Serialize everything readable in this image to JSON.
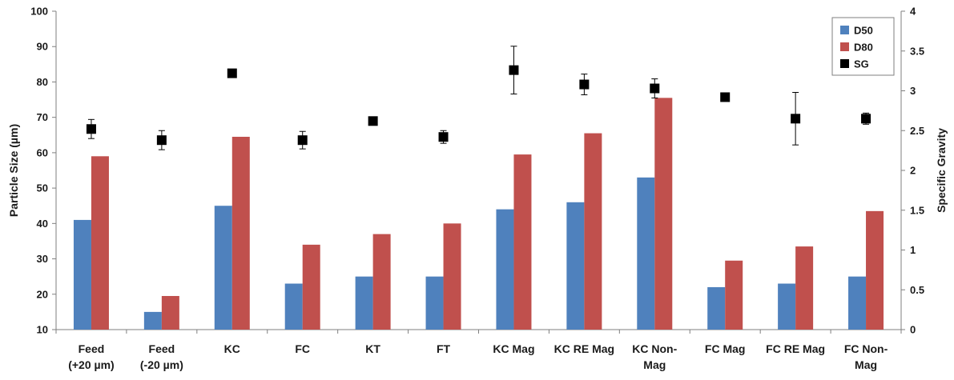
{
  "chart_data": {
    "type": "bar",
    "title": "",
    "categories": [
      [
        "Feed",
        "(+20 µm)"
      ],
      [
        "Feed",
        "(-20 µm)"
      ],
      [
        "KC"
      ],
      [
        "FC"
      ],
      [
        "KT"
      ],
      [
        "FT"
      ],
      [
        "KC Mag"
      ],
      [
        "KC RE Mag"
      ],
      [
        "KC Non-",
        "Mag"
      ],
      [
        "FC Mag"
      ],
      [
        "FC RE Mag"
      ],
      [
        "FC Non-",
        "Mag"
      ]
    ],
    "ylabel": "Particle Size (µm)",
    "y2label": "Specific Gravity",
    "ylim": [
      10,
      100
    ],
    "yticks": [
      10,
      20,
      30,
      40,
      50,
      60,
      70,
      80,
      90,
      100
    ],
    "y2lim": [
      0,
      4
    ],
    "y2ticks": [
      "0",
      "0.5",
      "1",
      "1.5",
      "2",
      "2.5",
      "3",
      "3.5",
      "4"
    ],
    "series": [
      {
        "name": "D50",
        "kind": "bar",
        "axis": "left",
        "color": "#4f81bd",
        "values": [
          41,
          15,
          45,
          23,
          25,
          25,
          44,
          46,
          53,
          22,
          23,
          25
        ]
      },
      {
        "name": "D80",
        "kind": "bar",
        "axis": "left",
        "color": "#c0504d",
        "values": [
          59,
          19.5,
          64.5,
          34,
          37,
          40,
          59.5,
          65.5,
          75.5,
          29.5,
          33.5,
          43.5
        ]
      },
      {
        "name": "SG",
        "kind": "scatter",
        "axis": "right",
        "color": "#000000",
        "values": [
          2.52,
          2.38,
          3.22,
          2.38,
          2.62,
          2.42,
          3.26,
          3.08,
          3.03,
          2.92,
          2.65,
          2.65
        ],
        "error": [
          0.12,
          0.12,
          0.04,
          0.11,
          0,
          0.08,
          0.3,
          0.13,
          0.12,
          0,
          0.33,
          0.07
        ]
      }
    ],
    "legend": {
      "position": "top-right",
      "entries": [
        "D50",
        "D80",
        "SG"
      ]
    },
    "grid": false
  }
}
